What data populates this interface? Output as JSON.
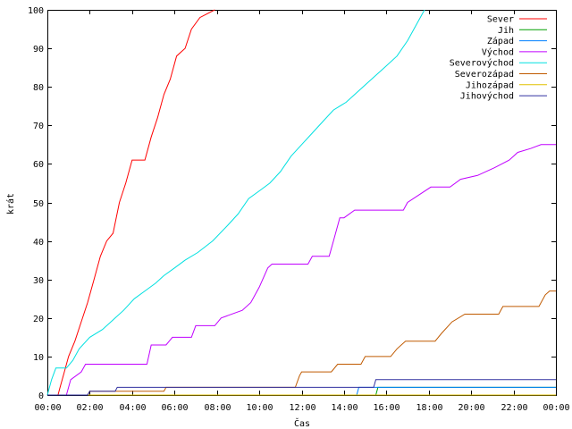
{
  "chart_data": {
    "type": "line",
    "title": "",
    "xlabel": "Čas",
    "ylabel": "krát",
    "x_ticks": [
      "00:00",
      "02:00",
      "04:00",
      "06:00",
      "08:00",
      "10:00",
      "12:00",
      "14:00",
      "16:00",
      "18:00",
      "20:00",
      "22:00",
      "00:00"
    ],
    "y_ticks": [
      0,
      10,
      20,
      30,
      40,
      50,
      60,
      70,
      80,
      90,
      100
    ],
    "xlim_hours": [
      0,
      24
    ],
    "ylim": [
      0,
      100
    ],
    "grid": false,
    "legend_position": "top-right",
    "series": [
      {
        "name": "Sever",
        "color": "#ff0000",
        "points": [
          [
            0.0,
            0
          ],
          [
            0.5,
            0
          ],
          [
            0.6,
            2
          ],
          [
            0.8,
            6
          ],
          [
            1.0,
            10
          ],
          [
            1.3,
            14
          ],
          [
            1.6,
            19
          ],
          [
            1.9,
            24
          ],
          [
            2.2,
            30
          ],
          [
            2.5,
            36
          ],
          [
            2.8,
            40
          ],
          [
            3.1,
            42
          ],
          [
            3.4,
            50
          ],
          [
            3.7,
            55
          ],
          [
            4.0,
            61
          ],
          [
            4.6,
            61
          ],
          [
            4.9,
            67
          ],
          [
            5.2,
            72
          ],
          [
            5.5,
            78
          ],
          [
            5.8,
            82
          ],
          [
            6.1,
            88
          ],
          [
            6.5,
            90
          ],
          [
            6.8,
            95
          ],
          [
            7.2,
            98
          ],
          [
            7.9,
            100
          ]
        ]
      },
      {
        "name": "Jih",
        "color": "#00a000",
        "points": [
          [
            0.0,
            0
          ],
          [
            15.5,
            0
          ],
          [
            15.6,
            2
          ],
          [
            24.0,
            2
          ]
        ]
      },
      {
        "name": "Západ",
        "color": "#0080ff",
        "points": [
          [
            0.0,
            0
          ],
          [
            14.6,
            0
          ],
          [
            14.7,
            2
          ],
          [
            24.0,
            2
          ]
        ]
      },
      {
        "name": "Východ",
        "color": "#c000ff",
        "points": [
          [
            0.0,
            0
          ],
          [
            0.9,
            0
          ],
          [
            1.1,
            4
          ],
          [
            1.6,
            6
          ],
          [
            1.8,
            8
          ],
          [
            4.7,
            8
          ],
          [
            4.9,
            13
          ],
          [
            5.6,
            13
          ],
          [
            5.9,
            15
          ],
          [
            6.8,
            15
          ],
          [
            7.0,
            18
          ],
          [
            7.9,
            18
          ],
          [
            8.2,
            20
          ],
          [
            9.2,
            22
          ],
          [
            9.6,
            24
          ],
          [
            10.0,
            28
          ],
          [
            10.4,
            33
          ],
          [
            10.6,
            34
          ],
          [
            12.3,
            34
          ],
          [
            12.5,
            36
          ],
          [
            13.3,
            36
          ],
          [
            13.5,
            40
          ],
          [
            13.8,
            46
          ],
          [
            14.0,
            46
          ],
          [
            14.5,
            48
          ],
          [
            16.8,
            48
          ],
          [
            17.0,
            50
          ],
          [
            18.1,
            54
          ],
          [
            19.0,
            54
          ],
          [
            19.5,
            56
          ],
          [
            20.3,
            57
          ],
          [
            21.1,
            59
          ],
          [
            21.8,
            61
          ],
          [
            22.2,
            63
          ],
          [
            22.8,
            64
          ],
          [
            23.3,
            65
          ],
          [
            24.0,
            65
          ]
        ]
      },
      {
        "name": "Severovýchod",
        "color": "#00e0e0",
        "points": [
          [
            0.0,
            0
          ],
          [
            0.2,
            4
          ],
          [
            0.4,
            7
          ],
          [
            0.9,
            7
          ],
          [
            1.2,
            9
          ],
          [
            1.5,
            12
          ],
          [
            2.0,
            15
          ],
          [
            2.6,
            17
          ],
          [
            3.0,
            19
          ],
          [
            3.6,
            22
          ],
          [
            4.1,
            25
          ],
          [
            4.6,
            27
          ],
          [
            5.1,
            29
          ],
          [
            5.5,
            31
          ],
          [
            6.0,
            33
          ],
          [
            6.5,
            35
          ],
          [
            7.1,
            37
          ],
          [
            7.8,
            40
          ],
          [
            8.5,
            44
          ],
          [
            9.0,
            47
          ],
          [
            9.5,
            51
          ],
          [
            10.0,
            53
          ],
          [
            10.5,
            55
          ],
          [
            11.0,
            58
          ],
          [
            11.5,
            62
          ],
          [
            12.0,
            65
          ],
          [
            12.5,
            68
          ],
          [
            13.0,
            71
          ],
          [
            13.5,
            74
          ],
          [
            14.1,
            76
          ],
          [
            14.7,
            79
          ],
          [
            15.3,
            82
          ],
          [
            15.9,
            85
          ],
          [
            16.5,
            88
          ],
          [
            17.0,
            92
          ],
          [
            17.4,
            96
          ],
          [
            17.8,
            100
          ]
        ]
      },
      {
        "name": "Severozápad",
        "color": "#c05a00",
        "points": [
          [
            0.0,
            0
          ],
          [
            1.9,
            0
          ],
          [
            2.0,
            1
          ],
          [
            5.5,
            1
          ],
          [
            5.6,
            2
          ],
          [
            11.7,
            2
          ],
          [
            11.9,
            5
          ],
          [
            12.0,
            6
          ],
          [
            13.4,
            6
          ],
          [
            13.7,
            8
          ],
          [
            14.8,
            8
          ],
          [
            15.0,
            10
          ],
          [
            16.2,
            10
          ],
          [
            16.5,
            12
          ],
          [
            16.9,
            14
          ],
          [
            18.3,
            14
          ],
          [
            18.6,
            16
          ],
          [
            19.1,
            19
          ],
          [
            19.7,
            21
          ],
          [
            21.3,
            21
          ],
          [
            21.5,
            23
          ],
          [
            23.2,
            23
          ],
          [
            23.5,
            26
          ],
          [
            23.7,
            27
          ],
          [
            24.0,
            27
          ]
        ]
      },
      {
        "name": "Jihozápad",
        "color": "#e0c000",
        "points": [
          [
            0.0,
            0
          ],
          [
            24.0,
            0
          ]
        ]
      },
      {
        "name": "Jihovýchod",
        "color": "#3030a0",
        "points": [
          [
            0.0,
            0
          ],
          [
            1.9,
            0
          ],
          [
            2.0,
            1
          ],
          [
            3.2,
            1
          ],
          [
            3.3,
            2
          ],
          [
            15.4,
            2
          ],
          [
            15.5,
            4
          ],
          [
            24.0,
            4
          ]
        ]
      }
    ]
  }
}
